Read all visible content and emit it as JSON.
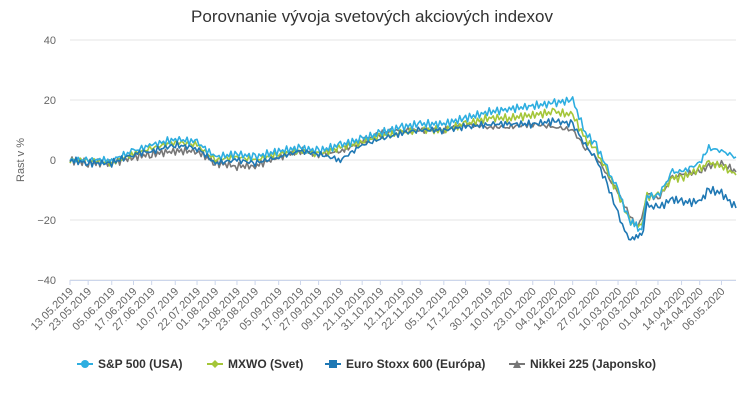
{
  "chart_data": {
    "type": "line",
    "title": "Porovnanie vývoja svetových akciových indexov",
    "ylabel": "Rast v %",
    "xlabel": "",
    "ylim": [
      -40,
      40
    ],
    "yticks": [
      "40",
      "20",
      "0",
      "−20",
      "−40"
    ],
    "ytick_values": [
      40,
      20,
      0,
      -20,
      -40
    ],
    "grid": true,
    "legend_position": "bottom",
    "x_tick_labels": [
      "13.05.2019",
      "23.05.2019",
      "05.06.2019",
      "17.06.2019",
      "27.06.2019",
      "10.07.2019",
      "22.07.2019",
      "01.08.2019",
      "13.08.2019",
      "23.08.2019",
      "05.09.2019",
      "17.09.2019",
      "27.09.2019",
      "09.10.2019",
      "21.10.2019",
      "31.10.2019",
      "12.11.2019",
      "22.11.2019",
      "05.12.2019",
      "17.12.2019",
      "30.12.2019",
      "10.01.2020",
      "23.01.2020",
      "04.02.2020",
      "14.02.2020",
      "27.02.2020",
      "10.03.2020",
      "20.03.2020",
      "01.04.2020",
      "14.04.2020",
      "24.04.2020",
      "06.05.2020"
    ],
    "x_range": [
      "13.05.2019",
      "14.05.2020"
    ],
    "x_knots": [
      "13.05.2019",
      "23.05.2019",
      "05.06.2019",
      "17.06.2019",
      "27.06.2019",
      "10.07.2019",
      "22.07.2019",
      "01.08.2019",
      "13.08.2019",
      "23.08.2019",
      "05.09.2019",
      "17.09.2019",
      "27.09.2019",
      "09.10.2019",
      "21.10.2019",
      "31.10.2019",
      "12.11.2019",
      "22.11.2019",
      "05.12.2019",
      "17.12.2019",
      "30.12.2019",
      "10.01.2020",
      "23.01.2020",
      "04.02.2020",
      "14.02.2020",
      "21.02.2020",
      "27.02.2020",
      "04.03.2020",
      "10.03.2020",
      "16.03.2020",
      "20.03.2020",
      "23.03.2020",
      "26.03.2020",
      "01.04.2020",
      "09.04.2020",
      "14.04.2020",
      "24.04.2020",
      "29.04.2020",
      "06.05.2020",
      "14.05.2020"
    ],
    "series": [
      {
        "name": "S&P 500 (USA)",
        "color": "#2eaee0",
        "marker": "circle",
        "values": [
          0,
          0,
          0,
          3,
          5,
          7,
          6,
          1,
          2,
          1,
          3,
          4,
          3,
          5,
          7,
          9,
          11,
          12,
          12,
          14,
          16,
          17,
          18,
          19,
          20,
          9,
          5,
          -3,
          -10,
          -20,
          -22,
          -24,
          -12,
          -12,
          -4,
          -4,
          -1,
          4,
          3,
          1
        ]
      },
      {
        "name": "MXWO (Svet)",
        "color": "#a4c639",
        "marker": "diamond",
        "values": [
          0,
          0,
          -1,
          2,
          4,
          6,
          5,
          0,
          1,
          0,
          2,
          3,
          2,
          4,
          6,
          8,
          9,
          10,
          10,
          12,
          14,
          14,
          15,
          16,
          15,
          7,
          3,
          -4,
          -11,
          -20,
          -22,
          -22,
          -12,
          -12,
          -6,
          -6,
          -3,
          -1,
          -2,
          -5
        ]
      },
      {
        "name": "Euro Stoxx 600 (Európa)",
        "color": "#1f78b4",
        "marker": "square",
        "values": [
          0,
          -1,
          -1,
          2,
          3,
          5,
          4,
          -1,
          0,
          -1,
          1,
          3,
          2,
          0,
          5,
          7,
          9,
          10,
          10,
          11,
          12,
          12,
          12,
          13,
          12,
          5,
          0,
          -8,
          -18,
          -27,
          -25,
          -26,
          -15,
          -16,
          -13,
          -14,
          -14,
          -10,
          -11,
          -16
        ]
      },
      {
        "name": "Nikkei 225 (Japonsko)",
        "color": "#777777",
        "marker": "triangle",
        "values": [
          0,
          -1,
          -1,
          1,
          2,
          3,
          3,
          -1,
          -2,
          -2,
          1,
          3,
          2,
          3,
          6,
          9,
          10,
          10,
          10,
          12,
          11,
          11,
          12,
          11,
          10,
          4,
          1,
          -5,
          -11,
          -18,
          -22,
          -20,
          -11,
          -13,
          -6,
          -5,
          -4,
          -2,
          -1,
          -4
        ]
      }
    ]
  }
}
